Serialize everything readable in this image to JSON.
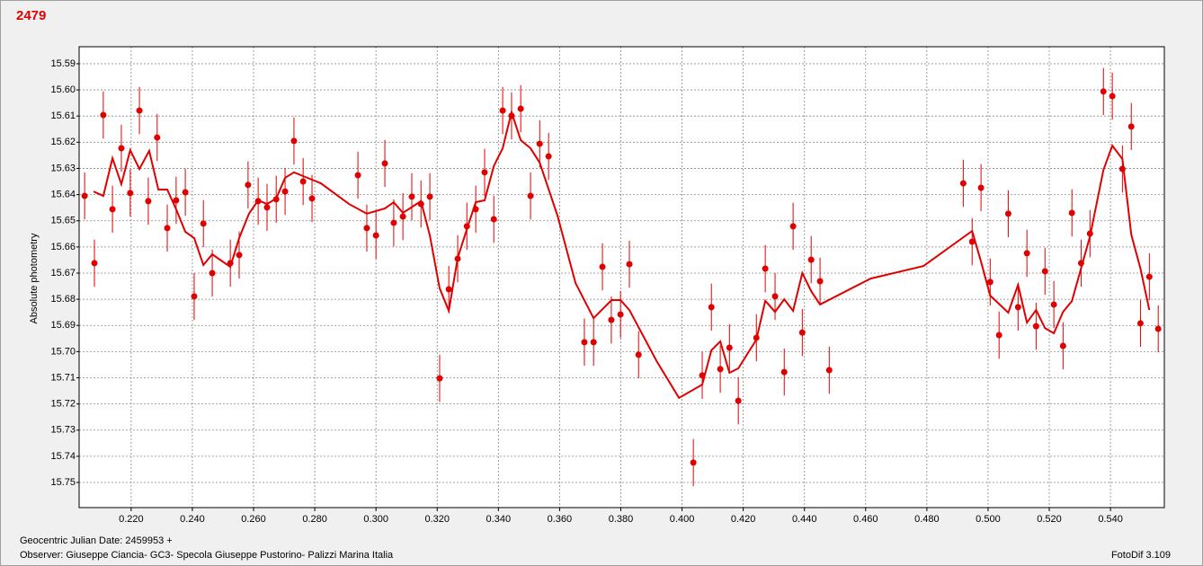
{
  "chart_data": {
    "type": "scatter",
    "title": "2479",
    "ylabel": "Absolute photometry",
    "xlabel": "Geocentric Julian Date: 2459953 +",
    "footnote": "Observer: Giuseppe Ciancia- GC3- Specola Giuseppe Pustorino- Palizzi Marina Italia",
    "software": "FotoDif 3.109",
    "xlim": [
      0.203,
      0.5576
    ],
    "ylim": [
      15.5835,
      15.7596
    ],
    "y_inverted": true,
    "grid": true,
    "xticks": [
      {
        "value": 0.22,
        "label": "0.220"
      },
      {
        "value": 0.24,
        "label": "0.240"
      },
      {
        "value": 0.26,
        "label": "0.260"
      },
      {
        "value": 0.28,
        "label": "0.280"
      },
      {
        "value": 0.3,
        "label": "0.300"
      },
      {
        "value": 0.32,
        "label": "0.320"
      },
      {
        "value": 0.34,
        "label": "0.340"
      },
      {
        "value": 0.36,
        "label": "0.360"
      },
      {
        "value": 0.38,
        "label": "0.380"
      },
      {
        "value": 0.4,
        "label": "0.400"
      },
      {
        "value": 0.42,
        "label": "0.420"
      },
      {
        "value": 0.44,
        "label": "0.440"
      },
      {
        "value": 0.46,
        "label": "0.460"
      },
      {
        "value": 0.48,
        "label": "0.480"
      },
      {
        "value": 0.5,
        "label": "0.500"
      },
      {
        "value": 0.52,
        "label": "0.520"
      },
      {
        "value": 0.54,
        "label": "0.540"
      }
    ],
    "yticks": [
      15.59,
      {
        "value": 15.6,
        "label": "15.60"
      },
      15.61,
      15.62,
      15.63,
      15.64,
      15.65,
      15.66,
      15.67,
      15.68,
      15.69,
      {
        "value": 15.7,
        "label": "15.70"
      },
      15.71,
      15.72,
      15.73,
      15.74,
      15.75
    ],
    "series": [
      {
        "style": "points",
        "color": "#e00000",
        "error": 0.009,
        "x": [
          0.2048,
          0.208,
          0.2109,
          0.2139,
          0.2168,
          0.2197,
          0.2227,
          0.2256,
          0.2285,
          0.2318,
          0.2347,
          0.2377,
          0.2406,
          0.2436,
          0.2465,
          0.2524,
          0.2553,
          0.2582,
          0.2615,
          0.2644,
          0.2674,
          0.2703,
          0.2732,
          0.2762,
          0.2791,
          0.2941,
          0.297,
          0.3,
          0.3029,
          0.3058,
          0.3088,
          0.3117,
          0.3147,
          0.3176,
          0.3208,
          0.3238,
          0.3267,
          0.3297,
          0.3326,
          0.3355,
          0.3385,
          0.3414,
          0.3443,
          0.3473,
          0.3505,
          0.3535,
          0.3564,
          0.3681,
          0.3711,
          0.374,
          0.3769,
          0.3799,
          0.3828,
          0.3858,
          0.4037,
          0.4066,
          0.4096,
          0.4125,
          0.4155,
          0.4184,
          0.4243,
          0.4272,
          0.4304,
          0.4334,
          0.4363,
          0.4393,
          0.4422,
          0.4451,
          0.4481,
          0.4919,
          0.4948,
          0.4977,
          0.5007,
          0.5036,
          0.5066,
          0.5098,
          0.5127,
          0.5157,
          0.5186,
          0.5215,
          0.5245,
          0.5274,
          0.5304,
          0.5333,
          0.5377,
          0.5406,
          0.5439,
          0.5468,
          0.5498,
          0.5527,
          0.5556
        ],
        "values": [
          15.6405,
          15.6662,
          15.6096,
          15.6456,
          15.6223,
          15.6394,
          15.6079,
          15.6425,
          15.6182,
          15.6528,
          15.6422,
          15.6391,
          15.6789,
          15.6511,
          15.67,
          15.6662,
          15.6631,
          15.6363,
          15.6425,
          15.6449,
          15.6418,
          15.6388,
          15.6195,
          15.635,
          15.6415,
          15.6326,
          15.6528,
          15.6556,
          15.6281,
          15.6508,
          15.6484,
          15.6408,
          15.6436,
          15.6408,
          15.7102,
          15.6762,
          15.6645,
          15.6521,
          15.6456,
          15.6315,
          15.6494,
          15.6079,
          15.6099,
          15.6072,
          15.6405,
          15.6206,
          15.6254,
          15.6964,
          15.6964,
          15.6676,
          15.6879,
          15.6858,
          15.6666,
          15.7012,
          15.7424,
          15.7091,
          15.683,
          15.7067,
          15.6985,
          15.7188,
          15.6947,
          15.6683,
          15.6789,
          15.7078,
          15.6521,
          15.6927,
          15.6649,
          15.6731,
          15.7071,
          15.6357,
          15.658,
          15.6374,
          15.6734,
          15.6937,
          15.6473,
          15.683,
          15.6624,
          15.6903,
          15.6693,
          15.682,
          15.6978,
          15.647,
          15.6662,
          15.6549,
          15.6006,
          15.6024,
          15.6302,
          15.614,
          15.6892,
          15.6714,
          15.6913
        ]
      },
      {
        "style": "line",
        "color": "#e00000",
        "x": [
          0.2077,
          0.2109,
          0.2139,
          0.2168,
          0.2197,
          0.2227,
          0.2259,
          0.2289,
          0.2318,
          0.2347,
          0.2377,
          0.2406,
          0.2436,
          0.2465,
          0.2494,
          0.2524,
          0.2553,
          0.2585,
          0.2615,
          0.2644,
          0.2674,
          0.2703,
          0.2732,
          0.2791,
          0.282,
          0.2912,
          0.297,
          0.3029,
          0.3058,
          0.3088,
          0.3147,
          0.3176,
          0.3208,
          0.3238,
          0.3267,
          0.3297,
          0.3326,
          0.3355,
          0.3385,
          0.3414,
          0.3443,
          0.3473,
          0.3505,
          0.3535,
          0.3593,
          0.3652,
          0.3711,
          0.377,
          0.3799,
          0.3828,
          0.3917,
          0.399,
          0.4066,
          0.4096,
          0.4125,
          0.4155,
          0.4184,
          0.4243,
          0.4272,
          0.4304,
          0.4334,
          0.4363,
          0.4393,
          0.4422,
          0.4451,
          0.4616,
          0.4789,
          0.4948,
          0.4977,
          0.5007,
          0.5066,
          0.5098,
          0.5127,
          0.5157,
          0.5186,
          0.5215,
          0.5245,
          0.5274,
          0.5333,
          0.5377,
          0.5406,
          0.5439,
          0.5468,
          0.5498,
          0.5527
        ],
        "values": [
          15.6388,
          15.6405,
          15.6261,
          15.636,
          15.623,
          15.6302,
          15.6233,
          15.6381,
          15.6381,
          15.6456,
          15.6542,
          15.6566,
          15.6669,
          15.6628,
          15.6652,
          15.6676,
          15.6566,
          15.6473,
          15.6422,
          15.6436,
          15.6415,
          15.6336,
          15.6315,
          15.6343,
          15.6357,
          15.6436,
          15.6473,
          15.6453,
          15.6429,
          15.647,
          15.6425,
          15.6556,
          15.6758,
          15.6844,
          15.6642,
          15.6532,
          15.6429,
          15.6422,
          15.6291,
          15.6223,
          15.6085,
          15.6192,
          15.6223,
          15.6278,
          15.648,
          15.6738,
          15.6872,
          15.6803,
          15.6803,
          15.6841,
          15.7036,
          15.7177,
          15.7126,
          15.6995,
          15.6961,
          15.7081,
          15.7064,
          15.6954,
          15.6806,
          15.6848,
          15.68,
          15.6844,
          15.67,
          15.6769,
          15.682,
          15.6721,
          15.6673,
          15.6539,
          15.6656,
          15.6786,
          15.6851,
          15.6745,
          15.6889,
          15.6841,
          15.691,
          15.693,
          15.6848,
          15.6807,
          15.656,
          15.6306,
          15.6213,
          15.6264,
          15.6553,
          15.6683,
          15.6841
        ]
      }
    ]
  }
}
